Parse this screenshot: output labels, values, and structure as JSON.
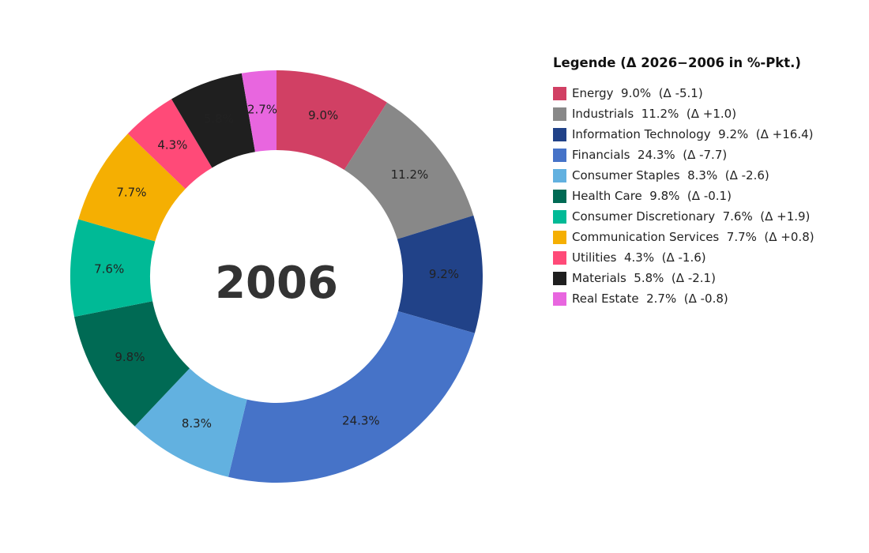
{
  "chart_data": {
    "type": "pie",
    "variant": "donut",
    "center_label": "2006",
    "legend_title": "Legende (Δ 2026−2006 in %-Pkt.)",
    "legend_placement": "right",
    "slices": [
      {
        "name": "Energy",
        "value": 9.0,
        "label": "9.0%",
        "delta": "-5.1",
        "color": "#D14064"
      },
      {
        "name": "Industrials",
        "value": 11.2,
        "label": "11.2%",
        "delta": "+1.0",
        "color": "#888888"
      },
      {
        "name": "Information Technology",
        "value": 9.2,
        "label": "9.2%",
        "delta": "+16.4",
        "color": "#214288"
      },
      {
        "name": "Financials",
        "value": 24.3,
        "label": "24.3%",
        "delta": "-7.7",
        "color": "#4673C8"
      },
      {
        "name": "Consumer Staples",
        "value": 8.3,
        "label": "8.3%",
        "delta": "-2.6",
        "color": "#62B1E0"
      },
      {
        "name": "Health Care",
        "value": 9.8,
        "label": "9.8%",
        "delta": "-0.1",
        "color": "#006A54"
      },
      {
        "name": "Consumer Discretionary",
        "value": 7.6,
        "label": "7.6%",
        "delta": "+1.9",
        "color": "#00BA96"
      },
      {
        "name": "Communication Services",
        "value": 7.7,
        "label": "7.7%",
        "delta": "+0.8",
        "color": "#F5AF02"
      },
      {
        "name": "Utilities",
        "value": 4.3,
        "label": "4.3%",
        "delta": "-1.6",
        "color": "#FF4A78"
      },
      {
        "name": "Materials",
        "value": 5.8,
        "label": "5.8%",
        "delta": "-2.1",
        "color": "#1F1F1F"
      },
      {
        "name": "Real Estate",
        "value": 2.7,
        "label": "2.7%",
        "delta": "-0.8",
        "color": "#E866DF"
      }
    ]
  }
}
